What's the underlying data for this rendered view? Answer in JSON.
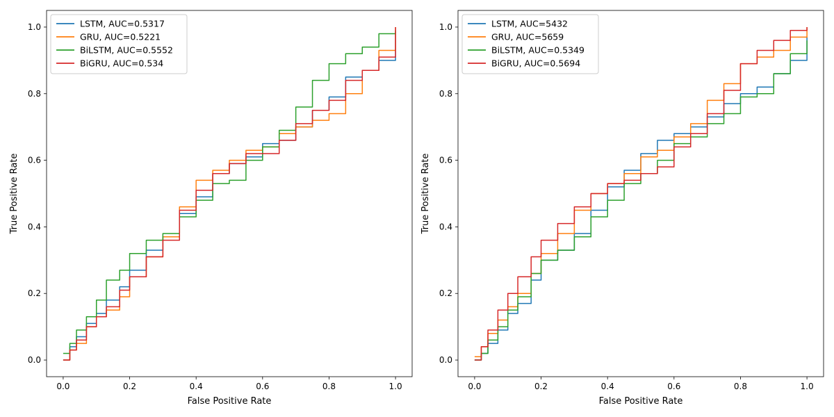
{
  "chart_data": [
    {
      "type": "line",
      "xlabel": "False Positive Rate",
      "ylabel": "True Positive Rate",
      "xlim": [
        -0.05,
        1.05
      ],
      "ylim": [
        -0.05,
        1.05
      ],
      "xticks": [
        0.0,
        0.2,
        0.4,
        0.6,
        0.8,
        1.0
      ],
      "yticks": [
        0.0,
        0.2,
        0.4,
        0.6,
        0.8,
        1.0
      ],
      "tick_labels": [
        "0.0",
        "0.2",
        "0.4",
        "0.6",
        "0.8",
        "1.0"
      ],
      "grid": false,
      "legend_position": "upper-left",
      "series": [
        {
          "name": "LSTM, AUC=0.5317",
          "color": "#1f77b4",
          "x": [
            0.0,
            0.02,
            0.04,
            0.07,
            0.1,
            0.13,
            0.17,
            0.2,
            0.25,
            0.3,
            0.35,
            0.4,
            0.45,
            0.5,
            0.55,
            0.6,
            0.65,
            0.7,
            0.75,
            0.8,
            0.85,
            0.9,
            0.95,
            1.0
          ],
          "y": [
            0.0,
            0.04,
            0.07,
            0.11,
            0.14,
            0.18,
            0.22,
            0.27,
            0.33,
            0.37,
            0.44,
            0.49,
            0.56,
            0.59,
            0.61,
            0.65,
            0.66,
            0.7,
            0.75,
            0.79,
            0.85,
            0.87,
            0.9,
            0.98
          ]
        },
        {
          "name": "GRU, AUC=0.5221",
          "color": "#ff7f0e",
          "x": [
            0.0,
            0.02,
            0.04,
            0.07,
            0.1,
            0.13,
            0.17,
            0.2,
            0.25,
            0.3,
            0.35,
            0.4,
            0.45,
            0.5,
            0.55,
            0.6,
            0.65,
            0.7,
            0.75,
            0.8,
            0.85,
            0.9,
            0.95,
            1.0
          ],
          "y": [
            0.0,
            0.03,
            0.05,
            0.1,
            0.13,
            0.15,
            0.19,
            0.25,
            0.31,
            0.37,
            0.46,
            0.54,
            0.57,
            0.6,
            0.63,
            0.64,
            0.68,
            0.7,
            0.72,
            0.74,
            0.8,
            0.87,
            0.93,
            1.0
          ]
        },
        {
          "name": "BiLSTM, AUC=0.5552",
          "color": "#2ca02c",
          "x": [
            0.0,
            0.02,
            0.04,
            0.07,
            0.1,
            0.13,
            0.17,
            0.2,
            0.25,
            0.3,
            0.35,
            0.4,
            0.45,
            0.5,
            0.55,
            0.6,
            0.65,
            0.7,
            0.75,
            0.8,
            0.85,
            0.9,
            0.95,
            1.0
          ],
          "y": [
            0.02,
            0.05,
            0.09,
            0.13,
            0.18,
            0.24,
            0.27,
            0.32,
            0.36,
            0.38,
            0.43,
            0.48,
            0.53,
            0.54,
            0.6,
            0.64,
            0.69,
            0.76,
            0.84,
            0.89,
            0.92,
            0.94,
            0.98,
            0.99
          ]
        },
        {
          "name": "BiGRU, AUC=0.534",
          "color": "#d62728",
          "x": [
            0.0,
            0.02,
            0.04,
            0.07,
            0.1,
            0.13,
            0.17,
            0.2,
            0.25,
            0.3,
            0.35,
            0.4,
            0.45,
            0.5,
            0.55,
            0.6,
            0.65,
            0.7,
            0.75,
            0.8,
            0.85,
            0.9,
            0.95,
            1.0
          ],
          "y": [
            0.0,
            0.03,
            0.06,
            0.1,
            0.13,
            0.16,
            0.21,
            0.25,
            0.31,
            0.36,
            0.45,
            0.51,
            0.56,
            0.59,
            0.62,
            0.62,
            0.66,
            0.71,
            0.75,
            0.78,
            0.84,
            0.87,
            0.91,
            1.0
          ]
        }
      ]
    },
    {
      "type": "line",
      "xlabel": "False Positive Rate",
      "ylabel": "True Positive Rate",
      "xlim": [
        -0.05,
        1.05
      ],
      "ylim": [
        -0.05,
        1.05
      ],
      "xticks": [
        0.0,
        0.2,
        0.4,
        0.6,
        0.8,
        1.0
      ],
      "yticks": [
        0.0,
        0.2,
        0.4,
        0.6,
        0.8,
        1.0
      ],
      "tick_labels": [
        "0.0",
        "0.2",
        "0.4",
        "0.6",
        "0.8",
        "1.0"
      ],
      "grid": false,
      "legend_position": "upper-left",
      "series": [
        {
          "name": "LSTM, AUC=5432",
          "color": "#1f77b4",
          "x": [
            0.0,
            0.02,
            0.04,
            0.07,
            0.1,
            0.13,
            0.17,
            0.2,
            0.25,
            0.3,
            0.35,
            0.4,
            0.45,
            0.5,
            0.55,
            0.6,
            0.65,
            0.7,
            0.75,
            0.8,
            0.85,
            0.9,
            0.95,
            1.0
          ],
          "y": [
            0.0,
            0.02,
            0.05,
            0.09,
            0.14,
            0.17,
            0.24,
            0.3,
            0.33,
            0.38,
            0.45,
            0.52,
            0.57,
            0.62,
            0.66,
            0.68,
            0.7,
            0.73,
            0.77,
            0.8,
            0.82,
            0.86,
            0.9,
            0.97
          ]
        },
        {
          "name": "GRU, AUC=5659",
          "color": "#ff7f0e",
          "x": [
            0.0,
            0.02,
            0.04,
            0.07,
            0.1,
            0.13,
            0.17,
            0.2,
            0.25,
            0.3,
            0.35,
            0.4,
            0.45,
            0.5,
            0.55,
            0.6,
            0.65,
            0.7,
            0.75,
            0.8,
            0.85,
            0.9,
            0.95,
            1.0
          ],
          "y": [
            0.01,
            0.04,
            0.08,
            0.12,
            0.16,
            0.2,
            0.26,
            0.32,
            0.38,
            0.45,
            0.5,
            0.53,
            0.56,
            0.61,
            0.63,
            0.67,
            0.71,
            0.78,
            0.83,
            0.89,
            0.91,
            0.93,
            0.97,
            1.0
          ]
        },
        {
          "name": "BiLSTM, AUC=0.5349",
          "color": "#2ca02c",
          "x": [
            0.0,
            0.02,
            0.04,
            0.07,
            0.1,
            0.13,
            0.17,
            0.2,
            0.25,
            0.3,
            0.35,
            0.4,
            0.45,
            0.5,
            0.55,
            0.6,
            0.65,
            0.7,
            0.75,
            0.8,
            0.85,
            0.9,
            0.95,
            1.0
          ],
          "y": [
            0.0,
            0.02,
            0.06,
            0.1,
            0.15,
            0.19,
            0.26,
            0.3,
            0.33,
            0.37,
            0.43,
            0.48,
            0.53,
            0.56,
            0.6,
            0.65,
            0.67,
            0.71,
            0.74,
            0.79,
            0.8,
            0.86,
            0.92,
            0.96
          ]
        },
        {
          "name": "BiGRU, AUC=0.5694",
          "color": "#d62728",
          "x": [
            0.0,
            0.02,
            0.04,
            0.07,
            0.1,
            0.13,
            0.17,
            0.2,
            0.25,
            0.3,
            0.35,
            0.4,
            0.45,
            0.5,
            0.55,
            0.6,
            0.65,
            0.7,
            0.75,
            0.8,
            0.85,
            0.9,
            0.95,
            1.0
          ],
          "y": [
            0.0,
            0.04,
            0.09,
            0.15,
            0.2,
            0.25,
            0.31,
            0.36,
            0.41,
            0.46,
            0.5,
            0.53,
            0.54,
            0.56,
            0.58,
            0.64,
            0.68,
            0.74,
            0.81,
            0.89,
            0.93,
            0.96,
            0.99,
            1.0
          ]
        }
      ]
    }
  ]
}
